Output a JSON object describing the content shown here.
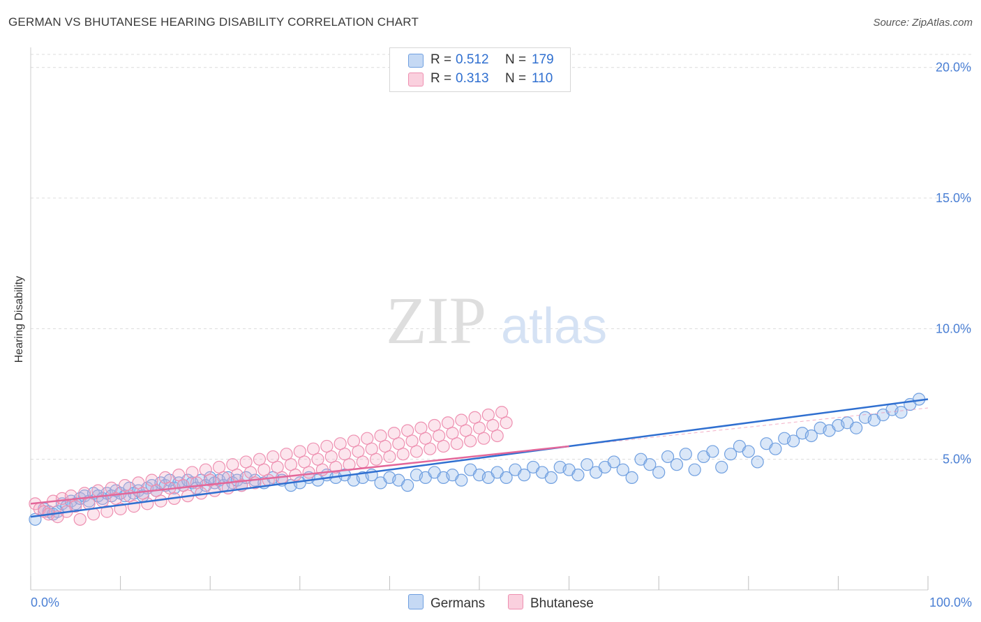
{
  "title": "GERMAN VS BHUTANESE HEARING DISABILITY CORRELATION CHART",
  "source": "Source: ZipAtlas.com",
  "watermark": {
    "zip": "ZIP",
    "atlas": "atlas"
  },
  "colors": {
    "german": "#6f9fe0",
    "german_fill": "rgba(150,185,235,0.35)",
    "german_line": "#2f6fd0",
    "bhutanese": "#ee8fb0",
    "bhutanese_fill": "rgba(245,170,195,0.30)",
    "bhutanese_line": "#e3679a",
    "axis_text": "#4a7fd4"
  },
  "legend": {
    "german": {
      "r_label": "R = ",
      "r_value": "0.512",
      "n_label": "N = ",
      "n_value": "179"
    },
    "bhutanese": {
      "r_label": "R = ",
      "r_value": "0.313",
      "n_label": "N = ",
      "n_value": "110"
    }
  },
  "bottom_legend": {
    "german": "Germans",
    "bhutanese": "Bhutanese"
  },
  "chart_data": {
    "type": "scatter",
    "title": "GERMAN VS BHUTANESE HEARING DISABILITY CORRELATION CHART",
    "xlabel": "",
    "ylabel": "Hearing Disability",
    "xlim": [
      0,
      100
    ],
    "ylim": [
      0,
      20.5
    ],
    "x_tick_labels": [
      "0.0%",
      "100.0%"
    ],
    "y_ticks": [
      5,
      10,
      15,
      20
    ],
    "y_tick_labels": [
      "5.0%",
      "10.0%",
      "15.0%",
      "20.0%"
    ],
    "grid": true,
    "series": [
      {
        "name": "Germans",
        "R": 0.512,
        "N": 179,
        "trend": {
          "x": [
            0,
            100
          ],
          "y": [
            2.8,
            7.3
          ]
        },
        "points": [
          [
            0.5,
            2.7
          ],
          [
            1.5,
            3.1
          ],
          [
            2,
            3.0
          ],
          [
            2.5,
            2.9
          ],
          [
            3,
            3.0
          ],
          [
            3.5,
            3.3
          ],
          [
            4,
            3.2
          ],
          [
            4.5,
            3.4
          ],
          [
            5,
            3.3
          ],
          [
            5.5,
            3.5
          ],
          [
            6,
            3.6
          ],
          [
            6.5,
            3.4
          ],
          [
            7,
            3.7
          ],
          [
            7.5,
            3.6
          ],
          [
            8,
            3.5
          ],
          [
            8.5,
            3.7
          ],
          [
            9,
            3.6
          ],
          [
            9.5,
            3.8
          ],
          [
            10,
            3.7
          ],
          [
            10.5,
            3.6
          ],
          [
            11,
            3.9
          ],
          [
            11.5,
            3.7
          ],
          [
            12,
            3.8
          ],
          [
            12.5,
            3.6
          ],
          [
            13,
            3.9
          ],
          [
            13.5,
            4.0
          ],
          [
            14,
            3.8
          ],
          [
            14.5,
            4.1
          ],
          [
            15,
            4.0
          ],
          [
            15.5,
            4.2
          ],
          [
            16,
            3.9
          ],
          [
            16.5,
            4.1
          ],
          [
            17,
            4.0
          ],
          [
            17.5,
            4.2
          ],
          [
            18,
            4.1
          ],
          [
            18.5,
            3.9
          ],
          [
            19,
            4.2
          ],
          [
            19.5,
            4.0
          ],
          [
            20,
            4.3
          ],
          [
            20.5,
            4.1
          ],
          [
            21,
            4.2
          ],
          [
            21.5,
            4.0
          ],
          [
            22,
            4.3
          ],
          [
            22.5,
            4.1
          ],
          [
            23,
            4.2
          ],
          [
            23.5,
            4.0
          ],
          [
            24,
            4.3
          ],
          [
            25,
            4.2
          ],
          [
            26,
            4.1
          ],
          [
            27,
            4.3
          ],
          [
            28,
            4.2
          ],
          [
            29,
            4.0
          ],
          [
            30,
            4.1
          ],
          [
            31,
            4.3
          ],
          [
            32,
            4.2
          ],
          [
            33,
            4.4
          ],
          [
            34,
            4.3
          ],
          [
            35,
            4.4
          ],
          [
            36,
            4.2
          ],
          [
            37,
            4.3
          ],
          [
            38,
            4.4
          ],
          [
            39,
            4.1
          ],
          [
            40,
            4.3
          ],
          [
            41,
            4.2
          ],
          [
            42,
            4.0
          ],
          [
            43,
            4.4
          ],
          [
            44,
            4.3
          ],
          [
            45,
            4.5
          ],
          [
            46,
            4.3
          ],
          [
            47,
            4.4
          ],
          [
            48,
            4.2
          ],
          [
            49,
            4.6
          ],
          [
            50,
            4.4
          ],
          [
            51,
            4.3
          ],
          [
            52,
            4.5
          ],
          [
            53,
            4.3
          ],
          [
            54,
            4.6
          ],
          [
            55,
            4.4
          ],
          [
            56,
            4.7
          ],
          [
            57,
            4.5
          ],
          [
            58,
            4.3
          ],
          [
            59,
            4.7
          ],
          [
            60,
            4.6
          ],
          [
            61,
            4.4
          ],
          [
            62,
            4.8
          ],
          [
            63,
            4.5
          ],
          [
            64,
            4.7
          ],
          [
            65,
            4.9
          ],
          [
            66,
            4.6
          ],
          [
            67,
            4.3
          ],
          [
            68,
            5.0
          ],
          [
            69,
            4.8
          ],
          [
            70,
            4.5
          ],
          [
            71,
            5.1
          ],
          [
            72,
            4.8
          ],
          [
            73,
            5.2
          ],
          [
            74,
            4.6
          ],
          [
            75,
            5.1
          ],
          [
            76,
            5.3
          ],
          [
            77,
            4.7
          ],
          [
            78,
            5.2
          ],
          [
            79,
            5.5
          ],
          [
            80,
            5.3
          ],
          [
            81,
            4.9
          ],
          [
            82,
            5.6
          ],
          [
            83,
            5.4
          ],
          [
            84,
            5.8
          ],
          [
            85,
            5.7
          ],
          [
            86,
            6.0
          ],
          [
            87,
            5.9
          ],
          [
            88,
            6.2
          ],
          [
            89,
            6.1
          ],
          [
            90,
            6.3
          ],
          [
            91,
            6.4
          ],
          [
            92,
            6.2
          ],
          [
            93,
            6.6
          ],
          [
            94,
            6.5
          ],
          [
            95,
            6.7
          ],
          [
            96,
            6.9
          ],
          [
            97,
            6.8
          ],
          [
            98,
            7.1
          ],
          [
            99,
            7.3
          ]
        ]
      },
      {
        "name": "Bhutanese",
        "R": 0.313,
        "N": 110,
        "trend": {
          "x": [
            0,
            60
          ],
          "y": [
            3.3,
            5.5
          ]
        },
        "points": [
          [
            0.5,
            3.3
          ],
          [
            1,
            3.1
          ],
          [
            1.5,
            3.0
          ],
          [
            2,
            2.9
          ],
          [
            2.5,
            3.4
          ],
          [
            3,
            2.8
          ],
          [
            3.5,
            3.5
          ],
          [
            4,
            3.0
          ],
          [
            4.5,
            3.6
          ],
          [
            5,
            3.2
          ],
          [
            5.5,
            2.7
          ],
          [
            6,
            3.7
          ],
          [
            6.5,
            3.3
          ],
          [
            7,
            2.9
          ],
          [
            7.5,
            3.8
          ],
          [
            8,
            3.4
          ],
          [
            8.5,
            3.0
          ],
          [
            9,
            3.9
          ],
          [
            9.5,
            3.5
          ],
          [
            10,
            3.1
          ],
          [
            10.5,
            4.0
          ],
          [
            11,
            3.6
          ],
          [
            11.5,
            3.2
          ],
          [
            12,
            4.1
          ],
          [
            12.5,
            3.7
          ],
          [
            13,
            3.3
          ],
          [
            13.5,
            4.2
          ],
          [
            14,
            3.8
          ],
          [
            14.5,
            3.4
          ],
          [
            15,
            4.3
          ],
          [
            15.5,
            3.9
          ],
          [
            16,
            3.5
          ],
          [
            16.5,
            4.4
          ],
          [
            17,
            4.0
          ],
          [
            17.5,
            3.6
          ],
          [
            18,
            4.5
          ],
          [
            18.5,
            4.1
          ],
          [
            19,
            3.7
          ],
          [
            19.5,
            4.6
          ],
          [
            20,
            4.2
          ],
          [
            20.5,
            3.8
          ],
          [
            21,
            4.7
          ],
          [
            21.5,
            4.3
          ],
          [
            22,
            3.9
          ],
          [
            22.5,
            4.8
          ],
          [
            23,
            4.4
          ],
          [
            23.5,
            4.0
          ],
          [
            24,
            4.9
          ],
          [
            24.5,
            4.5
          ],
          [
            25,
            4.1
          ],
          [
            25.5,
            5.0
          ],
          [
            26,
            4.6
          ],
          [
            26.5,
            4.2
          ],
          [
            27,
            5.1
          ],
          [
            27.5,
            4.7
          ],
          [
            28,
            4.3
          ],
          [
            28.5,
            5.2
          ],
          [
            29,
            4.8
          ],
          [
            29.5,
            4.4
          ],
          [
            30,
            5.3
          ],
          [
            30.5,
            4.9
          ],
          [
            31,
            4.5
          ],
          [
            31.5,
            5.4
          ],
          [
            32,
            5.0
          ],
          [
            32.5,
            4.6
          ],
          [
            33,
            5.5
          ],
          [
            33.5,
            5.1
          ],
          [
            34,
            4.7
          ],
          [
            34.5,
            5.6
          ],
          [
            35,
            5.2
          ],
          [
            35.5,
            4.8
          ],
          [
            36,
            5.7
          ],
          [
            36.5,
            5.3
          ],
          [
            37,
            4.9
          ],
          [
            37.5,
            5.8
          ],
          [
            38,
            5.4
          ],
          [
            38.5,
            5.0
          ],
          [
            39,
            5.9
          ],
          [
            39.5,
            5.5
          ],
          [
            40,
            5.1
          ],
          [
            40.5,
            6.0
          ],
          [
            41,
            5.6
          ],
          [
            41.5,
            5.2
          ],
          [
            42,
            6.1
          ],
          [
            42.5,
            5.7
          ],
          [
            43,
            5.3
          ],
          [
            43.5,
            6.2
          ],
          [
            44,
            5.8
          ],
          [
            44.5,
            5.4
          ],
          [
            45,
            6.3
          ],
          [
            45.5,
            5.9
          ],
          [
            46,
            5.5
          ],
          [
            46.5,
            6.4
          ],
          [
            47,
            6.0
          ],
          [
            47.5,
            5.6
          ],
          [
            48,
            6.5
          ],
          [
            48.5,
            6.1
          ],
          [
            49,
            5.7
          ],
          [
            49.5,
            6.6
          ],
          [
            50,
            6.2
          ],
          [
            50.5,
            5.8
          ],
          [
            51,
            6.7
          ],
          [
            51.5,
            6.3
          ],
          [
            52,
            5.9
          ],
          [
            52.5,
            6.8
          ],
          [
            53,
            6.4
          ]
        ]
      }
    ]
  }
}
